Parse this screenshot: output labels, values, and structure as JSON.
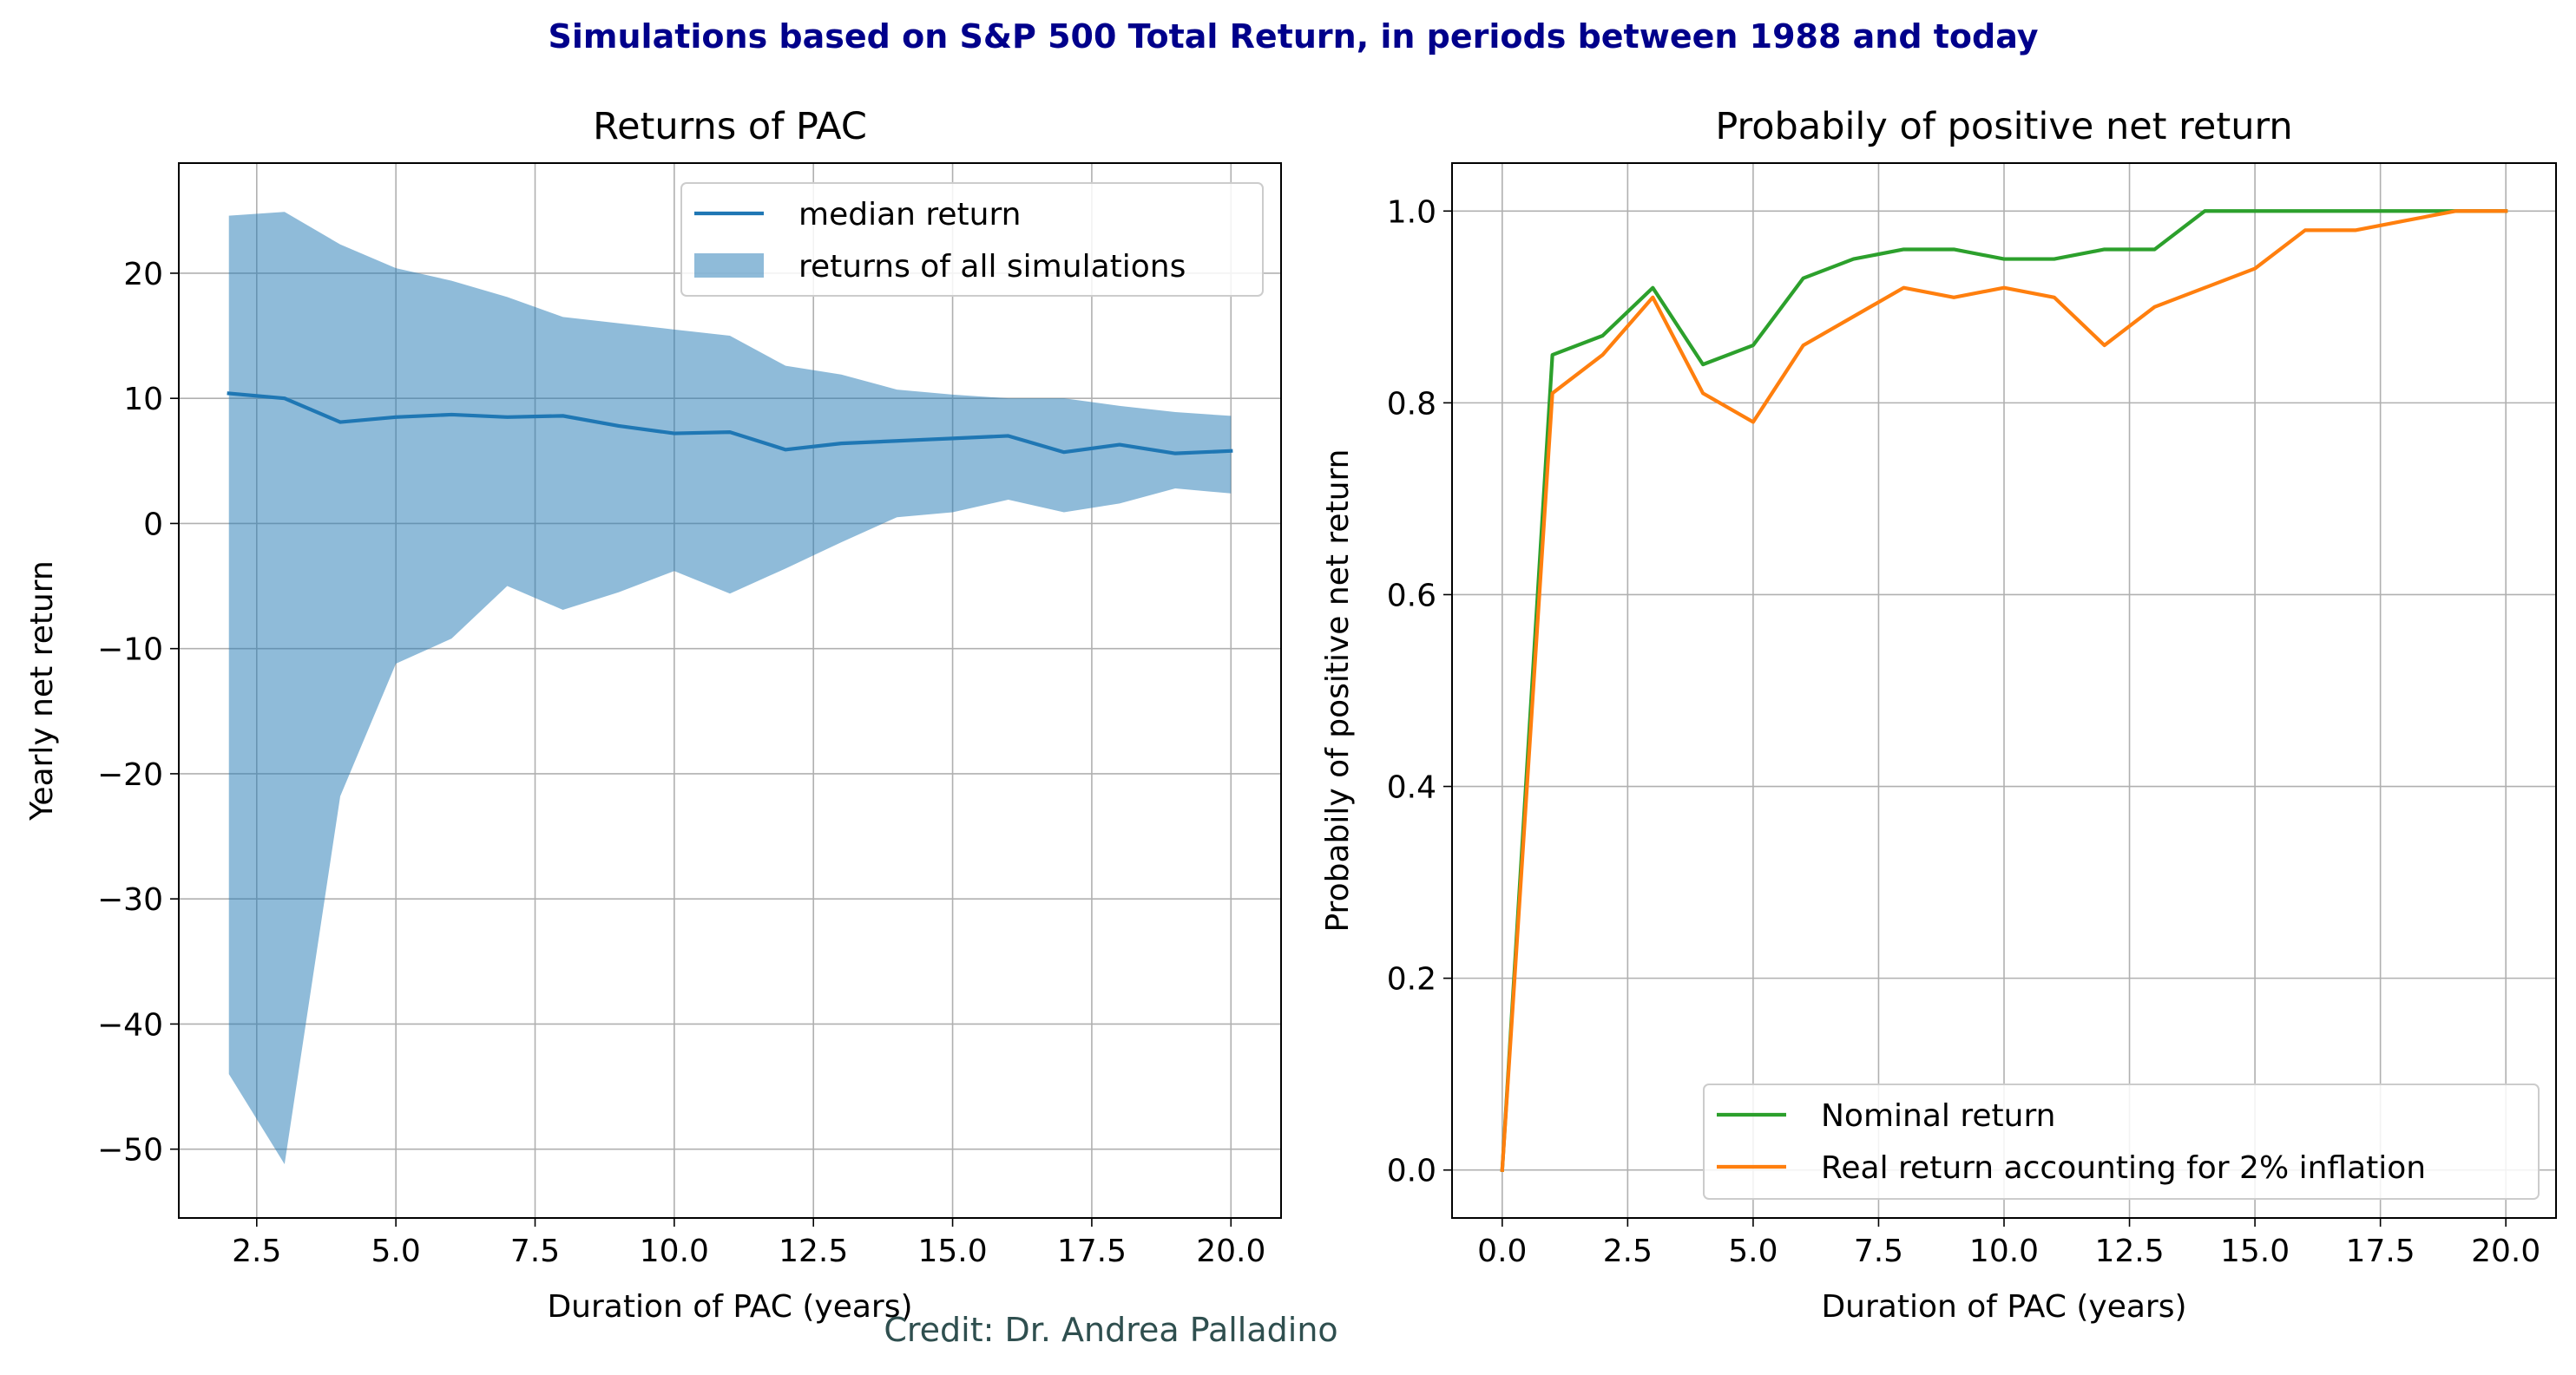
{
  "figure": {
    "suptitle": "Simulations based on S&P 500 Total Return, in periods between 1988 and today",
    "credit": "Credit: Dr. Andrea Palladino"
  },
  "chart_data": [
    {
      "type": "area",
      "title": "Returns of PAC",
      "xlabel": "Duration of PAC (years)",
      "ylabel": "Yearly net return",
      "xlim": [
        1.1,
        20.9
      ],
      "ylim": [
        -55.5,
        28.8
      ],
      "xticks": [
        2.5,
        5.0,
        7.5,
        10.0,
        12.5,
        15.0,
        17.5,
        20.0
      ],
      "xtick_labels": [
        "2.5",
        "5.0",
        "7.5",
        "10.0",
        "12.5",
        "15.0",
        "17.5",
        "20.0"
      ],
      "yticks": [
        -50,
        -40,
        -30,
        -20,
        -10,
        0,
        10,
        20
      ],
      "ytick_labels": [
        "−50",
        "−40",
        "−30",
        "−20",
        "−10",
        "0",
        "10",
        "20"
      ],
      "grid": true,
      "legend": "upper-right",
      "x": [
        2,
        3,
        4,
        5,
        6,
        7,
        8,
        9,
        10,
        11,
        12,
        13,
        14,
        15,
        16,
        17,
        18,
        19,
        20
      ],
      "series": [
        {
          "name": "median return",
          "kind": "line",
          "color": "#1f77b4",
          "values": [
            10.4,
            10.0,
            8.1,
            8.5,
            8.7,
            8.5,
            8.6,
            7.8,
            7.2,
            7.3,
            5.9,
            6.4,
            6.6,
            6.8,
            7.0,
            5.7,
            6.3,
            5.6,
            5.8
          ]
        },
        {
          "name": "returns of all simulations",
          "kind": "band",
          "color": "#1f77b4",
          "alpha": 0.5,
          "upper": [
            24.6,
            24.9,
            22.3,
            20.4,
            19.4,
            18.1,
            16.5,
            16.0,
            15.5,
            15.0,
            12.6,
            11.9,
            10.7,
            10.3,
            10.0,
            10.0,
            9.4,
            8.9,
            8.6
          ],
          "lower": [
            -44.0,
            -51.2,
            -21.8,
            -11.2,
            -9.2,
            -5.0,
            -6.9,
            -5.5,
            -3.8,
            -5.6,
            -3.6,
            -1.5,
            0.5,
            0.9,
            1.9,
            0.9,
            1.6,
            2.8,
            2.4
          ]
        }
      ]
    },
    {
      "type": "line",
      "title": "Probabily of positive net return",
      "xlabel": "Duration of PAC (years)",
      "ylabel": "Probabily of positive net return",
      "xlim": [
        -1.0,
        21.0
      ],
      "ylim": [
        -0.05,
        1.05
      ],
      "xticks": [
        0.0,
        2.5,
        5.0,
        7.5,
        10.0,
        12.5,
        15.0,
        17.5,
        20.0
      ],
      "xtick_labels": [
        "0.0",
        "2.5",
        "5.0",
        "7.5",
        "10.0",
        "12.5",
        "15.0",
        "17.5",
        "20.0"
      ],
      "yticks": [
        0.0,
        0.2,
        0.4,
        0.6,
        0.8,
        1.0
      ],
      "ytick_labels": [
        "0.0",
        "0.2",
        "0.4",
        "0.6",
        "0.8",
        "1.0"
      ],
      "grid": true,
      "legend": "lower-right",
      "x": [
        0,
        1,
        2,
        3,
        4,
        5,
        6,
        7,
        8,
        9,
        10,
        11,
        12,
        13,
        14,
        15,
        16,
        17,
        18,
        19,
        20
      ],
      "series": [
        {
          "name": "Nominal return",
          "color": "#2ca02c",
          "values": [
            0.0,
            0.85,
            0.87,
            0.92,
            0.84,
            0.86,
            0.93,
            0.95,
            0.96,
            0.96,
            0.95,
            0.95,
            0.96,
            0.96,
            1.0,
            1.0,
            1.0,
            1.0,
            1.0,
            1.0,
            1.0
          ]
        },
        {
          "name": "Real return accounting for 2% inflation",
          "color": "#ff7f0e",
          "values": [
            0.0,
            0.81,
            0.85,
            0.91,
            0.81,
            0.78,
            0.86,
            0.89,
            0.92,
            0.91,
            0.92,
            0.91,
            0.86,
            0.9,
            0.92,
            0.94,
            0.98,
            0.98,
            0.99,
            1.0,
            1.0
          ]
        }
      ]
    }
  ]
}
